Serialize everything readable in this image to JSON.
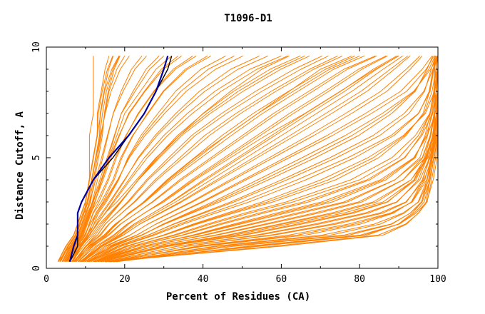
{
  "chart_data": {
    "type": "line",
    "title": "T1096-D1",
    "xlabel": "Percent of Residues (CA)",
    "ylabel": "Distance Cutoff, A",
    "xlim": [
      0,
      100
    ],
    "ylim": [
      0,
      10
    ],
    "x_ticks": [
      "0",
      "20",
      "40",
      "60",
      "80",
      "100"
    ],
    "y_ticks": [
      "0",
      "5",
      "10"
    ],
    "grid": false,
    "background_series_color": "#ff8000",
    "highlight_series_colors": [
      "#000000",
      "#0000a0"
    ],
    "cutoffs": [
      0.3,
      1.0,
      1.5,
      2.0,
      2.5,
      3.0,
      4.0,
      5.0,
      6.0,
      7.0,
      8.0,
      9.0,
      9.6
    ],
    "background_curves": [
      [
        3,
        5,
        7,
        8,
        9,
        10,
        11,
        12,
        13,
        13,
        14,
        15,
        16
      ],
      [
        4,
        6,
        8,
        9,
        10,
        11,
        12,
        13,
        14,
        15,
        16,
        18,
        20
      ],
      [
        5,
        7,
        9,
        10,
        11,
        12,
        14,
        16,
        18,
        20,
        24,
        28,
        32
      ],
      [
        6,
        8,
        10,
        11,
        12,
        14,
        17,
        19,
        22,
        26,
        30,
        36,
        42
      ],
      [
        6,
        9,
        11,
        13,
        15,
        17,
        21,
        25,
        30,
        36,
        43,
        52,
        60
      ],
      [
        7,
        10,
        13,
        15,
        18,
        21,
        26,
        32,
        38,
        46,
        55,
        65,
        72
      ],
      [
        8,
        12,
        16,
        19,
        23,
        27,
        34,
        42,
        50,
        58,
        67,
        76,
        84
      ],
      [
        9,
        14,
        19,
        23,
        28,
        33,
        42,
        51,
        60,
        69,
        78,
        86,
        91
      ],
      [
        10,
        16,
        23,
        28,
        34,
        40,
        51,
        62,
        73,
        83,
        92,
        97,
        99
      ],
      [
        11,
        19,
        27,
        34,
        42,
        50,
        64,
        77,
        88,
        95,
        98,
        99,
        100
      ],
      [
        12,
        22,
        33,
        42,
        52,
        63,
        80,
        90,
        95,
        98,
        99,
        100,
        100
      ],
      [
        13,
        26,
        40,
        52,
        64,
        76,
        89,
        96,
        98,
        99,
        100,
        100,
        100
      ],
      [
        14,
        30,
        48,
        62,
        76,
        86,
        94,
        97,
        99,
        100,
        100,
        100,
        100
      ],
      [
        16,
        36,
        58,
        74,
        86,
        92,
        96,
        98,
        99,
        100,
        100,
        100,
        100
      ],
      [
        18,
        46,
        76,
        88,
        93,
        96,
        98,
        99,
        100,
        100,
        100,
        100,
        100
      ],
      [
        15,
        60,
        86,
        92,
        95,
        97,
        98,
        99,
        100,
        100,
        100,
        100,
        100
      ],
      [
        3,
        6,
        8,
        9,
        10,
        10,
        11,
        11,
        11,
        12,
        12,
        12,
        12
      ],
      [
        5,
        8,
        11,
        13,
        15,
        18,
        23,
        28,
        34,
        40,
        47,
        55,
        62
      ],
      [
        7,
        11,
        15,
        18,
        21,
        25,
        31,
        38,
        46,
        54,
        62,
        70,
        78
      ],
      [
        9,
        13,
        18,
        21,
        25,
        30,
        38,
        47,
        56,
        66,
        75,
        84,
        90
      ]
    ],
    "highlight_curves": [
      [
        6,
        8,
        8,
        8,
        8,
        9,
        12,
        17,
        21,
        25,
        28,
        31,
        32
      ],
      [
        6,
        7,
        8,
        8,
        8,
        9,
        12,
        16,
        21,
        25,
        28,
        30,
        31
      ]
    ]
  }
}
